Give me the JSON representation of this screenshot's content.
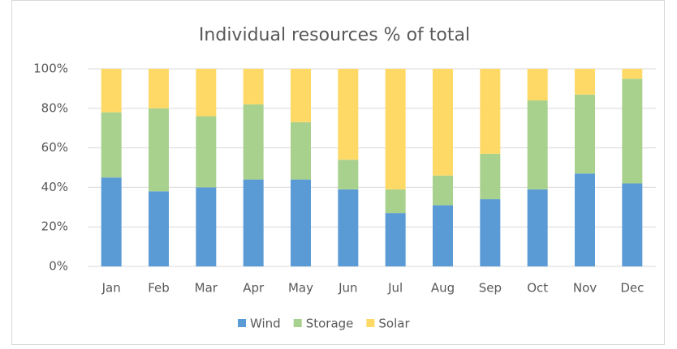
{
  "chart_data": {
    "type": "stacked_bar_100",
    "title": "Individual resources % of total",
    "categories": [
      "Jan",
      "Feb",
      "Mar",
      "Apr",
      "May",
      "Jun",
      "Jul",
      "Aug",
      "Sep",
      "Oct",
      "Nov",
      "Dec"
    ],
    "series": [
      {
        "name": "Wind",
        "color": "#5b9bd5",
        "values": [
          45,
          38,
          40,
          44,
          44,
          39,
          27,
          31,
          34,
          39,
          47,
          42
        ]
      },
      {
        "name": "Storage",
        "color": "#a9d18e",
        "values": [
          33,
          42,
          36,
          38,
          29,
          15,
          12,
          15,
          23,
          45,
          40,
          53
        ]
      },
      {
        "name": "Solar",
        "color": "#ffd966",
        "values": [
          22,
          20,
          24,
          18,
          27,
          46,
          61,
          54,
          43,
          16,
          13,
          5
        ]
      }
    ],
    "ylim": [
      0,
      100
    ],
    "yticks": [
      {
        "value": 0,
        "label": "0%"
      },
      {
        "value": 20,
        "label": "20%"
      },
      {
        "value": 40,
        "label": "40%"
      },
      {
        "value": 60,
        "label": "60%"
      },
      {
        "value": 80,
        "label": "80%"
      },
      {
        "value": 100,
        "label": "100%"
      }
    ],
    "grid": true,
    "legend": "bottom"
  }
}
